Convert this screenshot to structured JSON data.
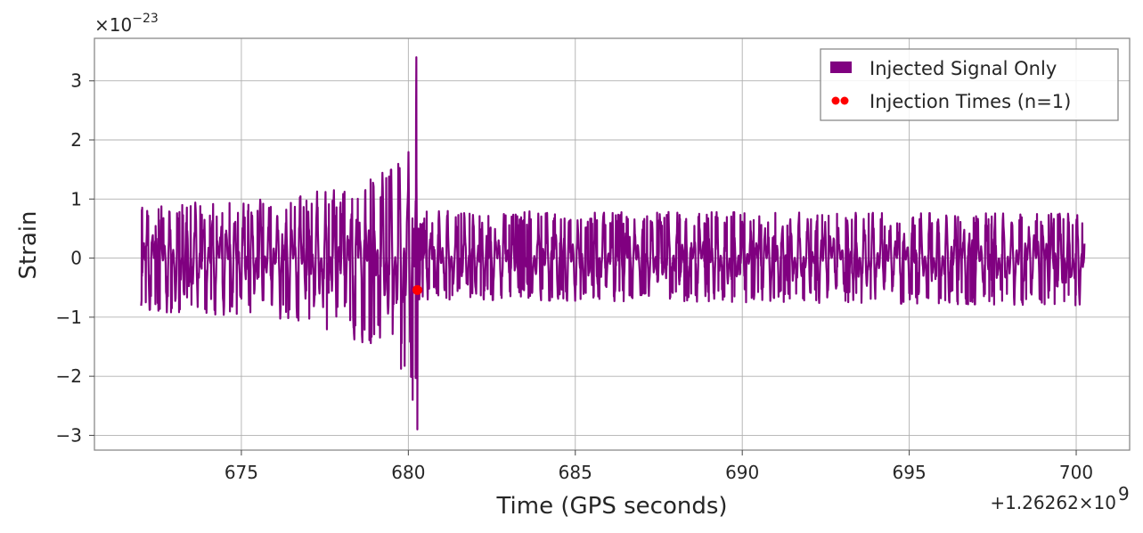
{
  "chart_data": {
    "type": "line",
    "xlabel": "Time (GPS seconds)",
    "ylabel": "Strain",
    "x_offset_label": "+1.26262×10",
    "x_offset_exponent": "9",
    "y_scale_label": "×10",
    "y_scale_exponent": "−23",
    "xlim": [
      670.6,
      701.6
    ],
    "ylim": [
      -3.25,
      3.72
    ],
    "x_ticks": [
      675,
      680,
      685,
      690,
      695,
      700
    ],
    "x_tick_labels": [
      "675",
      "680",
      "685",
      "690",
      "695",
      "700"
    ],
    "y_ticks": [
      -3,
      -2,
      -1,
      0,
      1,
      2,
      3
    ],
    "y_tick_labels": [
      "−3",
      "−2",
      "−1",
      "0",
      "1",
      "2",
      "3"
    ],
    "grid": true,
    "legend_position": "top-right",
    "series": [
      {
        "name": "Injected Signal Only",
        "kind": "line",
        "color": "#800080",
        "x_start": 672.0,
        "x_end": 700.25,
        "merger_time": 680.25,
        "peak_positive": 3.4,
        "peak_negative": -2.9,
        "pre_merger_envelope": [
          [
            672.0,
            0.9,
            -0.9
          ],
          [
            676.0,
            1.0,
            -1.0
          ],
          [
            678.0,
            1.2,
            -1.3
          ],
          [
            679.5,
            1.5,
            -1.6
          ],
          [
            680.0,
            2.0,
            -2.2
          ],
          [
            680.25,
            3.4,
            -2.9
          ]
        ],
        "post_merger_envelope": [
          [
            680.35,
            0.8,
            -0.7
          ],
          [
            700.25,
            0.75,
            -0.8
          ]
        ]
      },
      {
        "name": "Injection Times (n=1)",
        "kind": "scatter",
        "color": "#ff0000",
        "points": [
          [
            680.27,
            -0.54
          ]
        ]
      }
    ]
  }
}
